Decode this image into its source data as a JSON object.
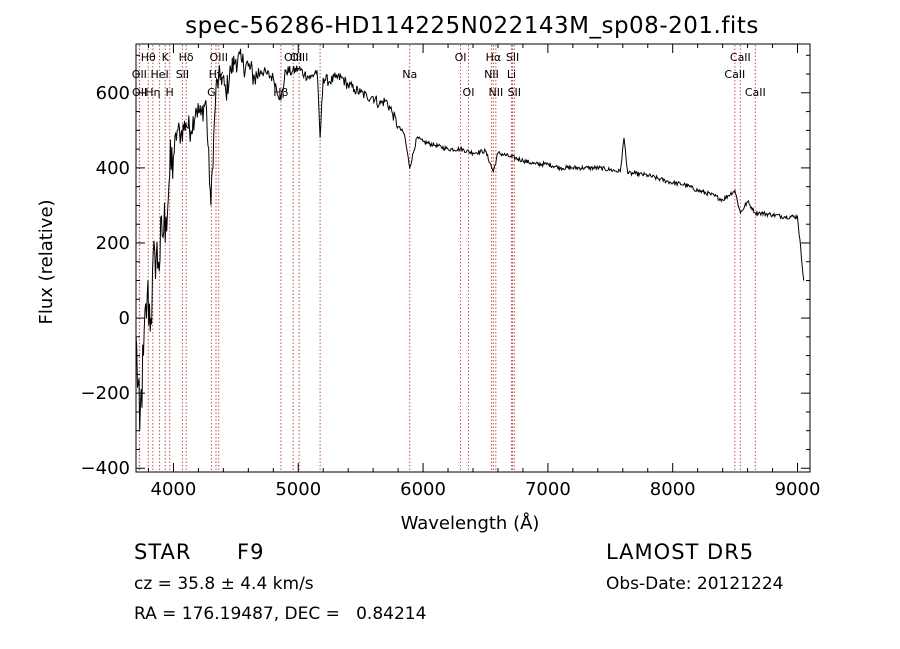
{
  "chart_data": {
    "type": "line",
    "title": "spec-56286-HD114225N022143M_sp08-201.fits",
    "xlabel": "Wavelength (Å)",
    "ylabel": "Flux (relative)",
    "xlim": [
      3700,
      9100
    ],
    "ylim": [
      -410,
      730
    ],
    "x_ticks": [
      4000,
      5000,
      6000,
      7000,
      8000,
      9000
    ],
    "y_ticks": [
      -400,
      -200,
      0,
      200,
      400,
      600
    ],
    "grid": false,
    "series": [
      {
        "x": [
          3700,
          3730,
          3760,
          3790,
          3820,
          3850,
          3880,
          3910,
          3940,
          3970,
          4000,
          4030,
          4060,
          4100,
          4140,
          4180,
          4220,
          4260,
          4300,
          4340,
          4380,
          4420,
          4460,
          4500,
          4550,
          4600,
          4650,
          4700,
          4750,
          4800,
          4861,
          4900,
          4950,
          5000,
          5050,
          5100,
          5150,
          5175,
          5200,
          5250,
          5300,
          5350,
          5400,
          5450,
          5500,
          5550,
          5600,
          5650,
          5700,
          5750,
          5800,
          5850,
          5893,
          5950,
          6000,
          6100,
          6200,
          6300,
          6400,
          6500,
          6563,
          6600,
          6700,
          6800,
          6900,
          7000,
          7100,
          7200,
          7300,
          7400,
          7500,
          7580,
          7610,
          7640,
          7700,
          7800,
          7900,
          8000,
          8100,
          8200,
          8300,
          8400,
          8498,
          8542,
          8600,
          8662,
          8700,
          8800,
          8900,
          9000,
          9050
        ],
        "y": [
          -50,
          -300,
          -100,
          60,
          0,
          180,
          150,
          220,
          270,
          380,
          430,
          500,
          490,
          520,
          500,
          560,
          540,
          580,
          300,
          610,
          650,
          600,
          660,
          690,
          680,
          670,
          640,
          660,
          650,
          640,
          580,
          660,
          655,
          665,
          650,
          640,
          660,
          480,
          640,
          630,
          640,
          640,
          620,
          610,
          600,
          590,
          590,
          570,
          580,
          550,
          510,
          490,
          400,
          480,
          470,
          460,
          450,
          450,
          440,
          445,
          390,
          440,
          430,
          420,
          410,
          410,
          400,
          400,
          400,
          400,
          395,
          390,
          480,
          385,
          385,
          380,
          370,
          360,
          355,
          340,
          330,
          315,
          340,
          280,
          310,
          280,
          280,
          275,
          270,
          270,
          100
        ]
      }
    ],
    "spectral_lines": [
      {
        "wavelength": 3798,
        "label": "Hθ",
        "row": 0
      },
      {
        "wavelength": 3727,
        "label": "OII",
        "row": 1
      },
      {
        "wavelength": 3729,
        "label": "OII",
        "row": 2
      },
      {
        "wavelength": 3835,
        "label": "Hη",
        "row": 2
      },
      {
        "wavelength": 3889,
        "label": "HeI",
        "row": 1
      },
      {
        "wavelength": 3934,
        "label": "K",
        "row": 0
      },
      {
        "wavelength": 3970,
        "label": "H",
        "row": 2
      },
      {
        "wavelength": 4072,
        "label": "SII",
        "row": 1
      },
      {
        "wavelength": 4102,
        "label": "Hδ",
        "row": 0
      },
      {
        "wavelength": 4304,
        "label": "G",
        "row": 2
      },
      {
        "wavelength": 4341,
        "label": "Hγ",
        "row": 1
      },
      {
        "wavelength": 4363,
        "label": "OIII",
        "row": 0
      },
      {
        "wavelength": 4861,
        "label": "Hβ",
        "row": 2
      },
      {
        "wavelength": 4959,
        "label": "OIII",
        "row": 0
      },
      {
        "wavelength": 5007,
        "label": "OIII",
        "row": 0
      },
      {
        "wavelength": 5175,
        "label": "",
        "row": 0
      },
      {
        "wavelength": 5893,
        "label": "Na",
        "row": 1
      },
      {
        "wavelength": 6300,
        "label": "OI",
        "row": 0
      },
      {
        "wavelength": 6364,
        "label": "OI",
        "row": 2
      },
      {
        "wavelength": 6548,
        "label": "NII",
        "row": 1
      },
      {
        "wavelength": 6563,
        "label": "Hα",
        "row": 0
      },
      {
        "wavelength": 6583,
        "label": "NII",
        "row": 2
      },
      {
        "wavelength": 6708,
        "label": "Li",
        "row": 1
      },
      {
        "wavelength": 6717,
        "label": "SII",
        "row": 0
      },
      {
        "wavelength": 6731,
        "label": "SII",
        "row": 2
      },
      {
        "wavelength": 8498,
        "label": "CaII",
        "row": 1
      },
      {
        "wavelength": 8542,
        "label": "CaII",
        "row": 0
      },
      {
        "wavelength": 8662,
        "label": "CaII",
        "row": 2
      }
    ],
    "line_color": "#000000",
    "marker_color": "#c0504d"
  },
  "info": {
    "object_class": "STAR",
    "subclass": "F9",
    "survey": "LAMOST DR5",
    "cz": "cz = 35.8 ± 4.4 km/s",
    "obs_date": "Obs-Date: 20121224",
    "coords": "RA = 176.19487, DEC =   0.84214"
  }
}
